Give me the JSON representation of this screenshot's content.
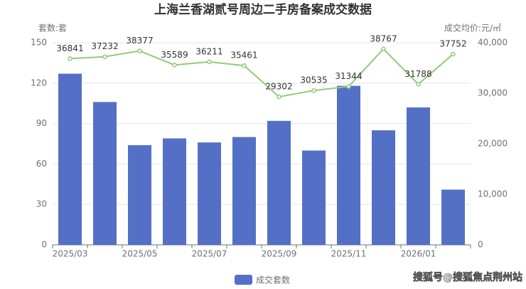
{
  "chart_data": {
    "type": "bar-line",
    "title": "上海兰香湖贰号周边二手房备案成交数据",
    "y_label": "套数:套",
    "y2_label": "成交均价:元/㎡",
    "categories": [
      "2025/03",
      null,
      "2025/05",
      null,
      "2025/07",
      null,
      "2025/09",
      null,
      "2025/11",
      null,
      "2026/01",
      null
    ],
    "series": [
      {
        "name": "成交套数",
        "type": "bar",
        "color": "#5470c6",
        "values": [
          127,
          106,
          74,
          79,
          76,
          80,
          92,
          70,
          118,
          85,
          102,
          41
        ]
      },
      {
        "type": "line",
        "axis": "y2",
        "color": "#91cc75",
        "values": [
          36841,
          37232,
          38377,
          35589,
          36211,
          35461,
          29302,
          30535,
          31344,
          38767,
          31788,
          37752
        ]
      }
    ],
    "ylim": [
      0,
      150
    ],
    "yticks": [
      0,
      30,
      60,
      90,
      120,
      150
    ],
    "y2lim": [
      0,
      40000
    ],
    "y2ticks": [
      0,
      {
        "value": 10000,
        "label": "10,000"
      },
      {
        "value": 20000,
        "label": "20,000"
      },
      {
        "value": 30000,
        "label": "30,000"
      },
      {
        "value": 40000,
        "label": "40,000"
      }
    ],
    "grid": true,
    "legend": "bottom",
    "watermark": "搜狐号@搜狐焦点荆州站"
  }
}
